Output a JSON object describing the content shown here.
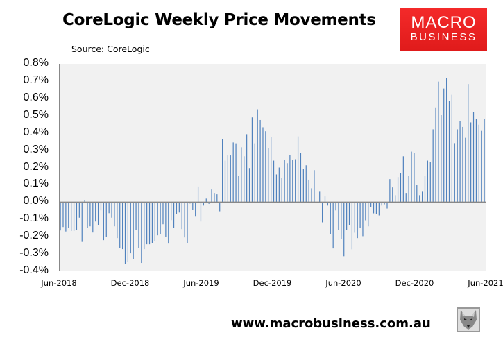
{
  "header": {
    "title": "CoreLogic Weekly Price Movements",
    "source": "Source: CoreLogic",
    "logo_line1": "MACRO",
    "logo_line2": "BUSINESS",
    "logo_color": "#e8201f"
  },
  "footer": {
    "url": "www.macrobusiness.com.au",
    "icon": "wolf-head-icon"
  },
  "chart_data": {
    "type": "bar",
    "title": "CoreLogic Weekly Price Movements",
    "subtitle": "Source: CoreLogic",
    "xlabel": "",
    "ylabel": "",
    "ylim": [
      -0.4,
      0.8
    ],
    "yticks": [
      "0.8%",
      "0.7%",
      "0.6%",
      "0.5%",
      "0.4%",
      "0.3%",
      "0.2%",
      "0.1%",
      "0.0%",
      "-0.1%",
      "-0.2%",
      "-0.3%",
      "-0.4%"
    ],
    "xticks": [
      "Jun-2018",
      "Dec-2018",
      "Jun-2019",
      "Dec-2019",
      "Jun-2020",
      "Dec-2020",
      "Jun-2021"
    ],
    "grid": false,
    "legend": null,
    "bar_color": "#4f81bd",
    "units": "% weekly change",
    "x_range": [
      "Jun-2018",
      "Jun-2021"
    ],
    "values": [
      -0.164,
      -0.144,
      -0.17,
      -0.15,
      -0.167,
      -0.167,
      -0.16,
      -0.09,
      -0.23,
      0.013,
      -0.148,
      -0.14,
      -0.176,
      -0.112,
      -0.132,
      -0.048,
      -0.22,
      -0.2,
      -0.064,
      -0.09,
      -0.14,
      -0.208,
      -0.264,
      -0.272,
      -0.358,
      -0.348,
      -0.296,
      -0.328,
      -0.16,
      -0.264,
      -0.352,
      -0.272,
      -0.244,
      -0.244,
      -0.236,
      -0.224,
      -0.192,
      -0.184,
      -0.128,
      -0.2,
      -0.24,
      -0.104,
      -0.148,
      -0.068,
      -0.06,
      -0.156,
      -0.204,
      -0.236,
      -0.008,
      -0.044,
      -0.084,
      0.09,
      -0.112,
      -0.02,
      0.02,
      -0.01,
      0.073,
      0.053,
      0.045,
      -0.053,
      0.365,
      0.24,
      0.27,
      0.27,
      0.345,
      0.34,
      0.15,
      0.317,
      0.265,
      0.393,
      0.197,
      0.49,
      0.34,
      0.537,
      0.475,
      0.433,
      0.41,
      0.313,
      0.377,
      0.24,
      0.16,
      0.2,
      0.14,
      0.245,
      0.225,
      0.273,
      0.245,
      0.248,
      0.38,
      0.285,
      0.193,
      0.213,
      0.13,
      0.08,
      0.185,
      -0.005,
      0.06,
      -0.117,
      0.033,
      -0.02,
      -0.185,
      -0.268,
      -0.048,
      -0.16,
      -0.213,
      -0.313,
      -0.16,
      -0.133,
      -0.273,
      -0.177,
      -0.208,
      -0.148,
      -0.197,
      -0.105,
      -0.14,
      -0.028,
      -0.065,
      -0.068,
      -0.077,
      -0.02,
      -0.013,
      -0.037,
      0.133,
      0.085,
      0.04,
      0.145,
      0.169,
      0.265,
      0.053,
      0.153,
      0.292,
      0.285,
      0.1,
      0.04,
      0.06,
      0.153,
      0.24,
      0.232,
      0.421,
      0.548,
      0.697,
      0.503,
      0.657,
      0.717,
      0.585,
      0.621,
      0.341,
      0.421,
      0.467,
      0.435,
      0.372,
      0.683,
      0.461,
      0.521,
      0.481,
      0.448,
      0.412,
      0.481
    ]
  }
}
